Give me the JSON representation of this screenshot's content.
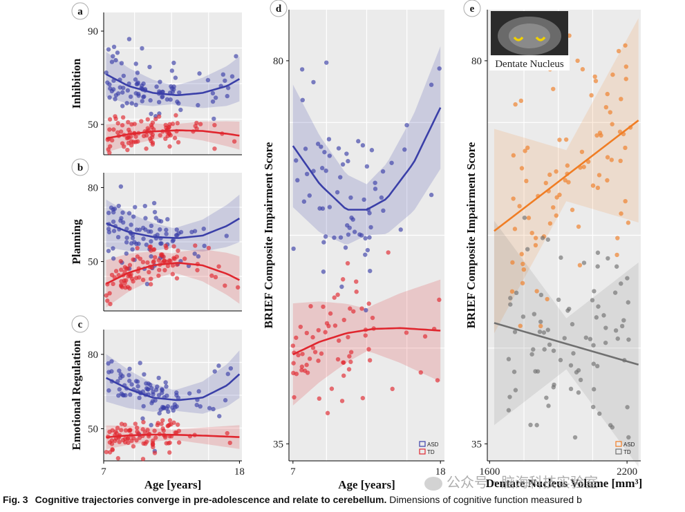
{
  "caption": {
    "fig": "Fig. 3",
    "lead": "Cognitive trajectories converge in pre-adolescence and relate to cerebellum.",
    "rest": " Dimensions of cognitive function measured b"
  },
  "watermark": "公众号 · 脑海科技实验室",
  "colors": {
    "asd": "#3a3fa8",
    "td": "#e0262e",
    "asd_e": "#f07d24",
    "td_e": "#707070"
  },
  "chart_data": [
    {
      "id": "a",
      "type": "scatter",
      "letter": "a",
      "ylabel": "Inhibition",
      "xlabel": "",
      "x_ticks": [],
      "y_ticks": [
        90,
        50
      ],
      "xlim": [
        7,
        18.2
      ],
      "ylim": [
        37,
        98
      ],
      "series": [
        {
          "name": "ASD",
          "curve": {
            "x": [
              7.2,
              9,
              11,
              13,
              15,
              17,
              18
            ],
            "y": [
              71.5,
              66.5,
              63.5,
              62.5,
              63.5,
              66.5,
              69.5
            ]
          },
          "band": 4
        },
        {
          "name": "TD",
          "curve": {
            "x": [
              7.2,
              9,
              11,
              13,
              15,
              17,
              18
            ],
            "y": [
              44,
              45.8,
              47,
              47.5,
              47.2,
              46,
              45.2
            ]
          },
          "band": 2.5
        }
      ]
    },
    {
      "id": "b",
      "type": "scatter",
      "letter": "b",
      "ylabel": "Planning",
      "xlabel": "",
      "x_ticks": [],
      "y_ticks": [
        80,
        50
      ],
      "xlim": [
        7,
        18.2
      ],
      "ylim": [
        30,
        86
      ],
      "series": [
        {
          "name": "ASD",
          "curve": {
            "x": [
              7.2,
              9,
              11,
              13,
              15,
              17,
              18
            ],
            "y": [
              65.5,
              62,
              60,
              59.5,
              60.5,
              64.5,
              67.5
            ]
          },
          "band": 4
        },
        {
          "name": "TD",
          "curve": {
            "x": [
              7.2,
              9,
              11,
              13,
              15,
              17,
              18
            ],
            "y": [
              41,
              45.5,
              48.5,
              49.5,
              48.5,
              45,
              42.5
            ]
          },
          "band": 4
        }
      ]
    },
    {
      "id": "c",
      "type": "scatter",
      "letter": "c",
      "ylabel": "Emotional Regulation",
      "xlabel": "Age [years]",
      "x_ticks": [
        7,
        18
      ],
      "y_ticks": [
        80,
        50
      ],
      "xlim": [
        7,
        18.2
      ],
      "ylim": [
        37,
        90
      ],
      "series": [
        {
          "name": "ASD",
          "curve": {
            "x": [
              7.2,
              9,
              11,
              13,
              15,
              17,
              18
            ],
            "y": [
              70.5,
              66,
              62.5,
              61.5,
              62.5,
              67.5,
              72
            ]
          },
          "band": 4
        },
        {
          "name": "TD",
          "curve": {
            "x": [
              7.2,
              9,
              11,
              13,
              15,
              17,
              18
            ],
            "y": [
              46.5,
              47.3,
              47.6,
              47.5,
              47.2,
              46.8,
              46.6
            ]
          },
          "band": 2
        }
      ]
    },
    {
      "id": "d",
      "type": "scatter",
      "letter": "d",
      "ylabel": "BRIEF Composite Impairment Score",
      "xlabel": "Age [years]",
      "x_ticks": [
        7,
        18
      ],
      "y_ticks": [
        80,
        35
      ],
      "xlim": [
        6.7,
        18.3
      ],
      "ylim": [
        33,
        86
      ],
      "legend": [
        "ASD",
        "TD"
      ],
      "series": [
        {
          "name": "ASD",
          "curve": {
            "x": [
              7,
              9,
              11,
              12.5,
              14,
              16,
              18
            ],
            "y": [
              70,
              65.5,
              62.5,
              62.5,
              63.8,
              68,
              74.5
            ]
          },
          "band": 3
        },
        {
          "name": "TD",
          "curve": {
            "x": [
              7,
              9,
              11,
              13,
              15,
              17,
              18
            ],
            "y": [
              45.5,
              47,
              48,
              48.5,
              48.6,
              48.4,
              48.3
            ]
          },
          "band": 2.5
        }
      ]
    },
    {
      "id": "e",
      "type": "scatter",
      "letter": "e",
      "ylabel": "BRIEF Composite Impairment Score",
      "xlabel": "Dentate Nucleus Volume [mm³]",
      "x_ticks": [
        1600,
        2200
      ],
      "y_ticks": [
        80,
        35
      ],
      "xlim": [
        1590,
        2260
      ],
      "ylim": [
        33,
        86
      ],
      "legend": [
        "ASD",
        "TD"
      ],
      "inset_label": "Dentate Nucleus",
      "series": [
        {
          "name": "ASD",
          "line": {
            "x": [
              1620,
              2250
            ],
            "y": [
              60,
              73
            ]
          }
        },
        {
          "name": "TD",
          "line": {
            "x": [
              1620,
              2250
            ],
            "y": [
              49.2,
              44.3
            ]
          }
        }
      ]
    }
  ]
}
